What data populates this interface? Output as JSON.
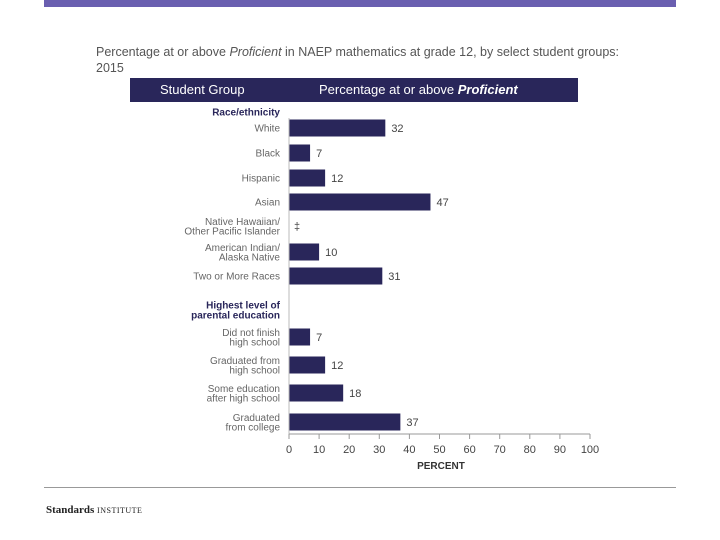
{
  "title": {
    "pre": "Percentage at or above ",
    "em": "Proficient",
    "post": " in NAEP mathematics at grade 12, by select student groups: 2015"
  },
  "header": {
    "col1": "Student Group",
    "col2_pre": "Percentage at or above ",
    "col2_em": "Proficient"
  },
  "footer": {
    "brand": "Standards",
    "suffix": "INSTITUTE"
  },
  "chart_data": {
    "type": "bar",
    "orientation": "horizontal",
    "xlabel": "PERCENT",
    "xlim": [
      0,
      100
    ],
    "xticks": [
      0,
      10,
      20,
      30,
      40,
      50,
      60,
      70,
      80,
      90,
      100
    ],
    "groups": [
      {
        "name": "Race/ethnicity",
        "name_lines": [
          "Race/ethnicity"
        ],
        "items": [
          {
            "label": [
              "White"
            ],
            "value": 32,
            "display": "32"
          },
          {
            "label": [
              "Black"
            ],
            "value": 7,
            "display": "7"
          },
          {
            "label": [
              "Hispanic"
            ],
            "value": 12,
            "display": "12"
          },
          {
            "label": [
              "Asian"
            ],
            "value": 47,
            "display": "47"
          },
          {
            "label": [
              "Native Hawaiian/",
              "Other Pacific Islander"
            ],
            "value": null,
            "display": "‡"
          },
          {
            "label": [
              "American Indian/",
              "Alaska Native"
            ],
            "value": 10,
            "display": "10"
          },
          {
            "label": [
              "Two or More Races"
            ],
            "value": 31,
            "display": "31"
          }
        ]
      },
      {
        "name": "Highest level of parental education",
        "name_lines": [
          "Highest level of",
          "parental education"
        ],
        "items": [
          {
            "label": [
              "Did not finish",
              "high school"
            ],
            "value": 7,
            "display": "7"
          },
          {
            "label": [
              "Graduated from",
              "high school"
            ],
            "value": 12,
            "display": "12"
          },
          {
            "label": [
              "Some education",
              "after high school"
            ],
            "value": 18,
            "display": "18"
          },
          {
            "label": [
              "Graduated",
              "from college"
            ],
            "value": 37,
            "display": "37"
          }
        ]
      }
    ],
    "colors": {
      "bar": "#29265a",
      "header": "#29265a",
      "accent": "#6a5fb0"
    }
  }
}
